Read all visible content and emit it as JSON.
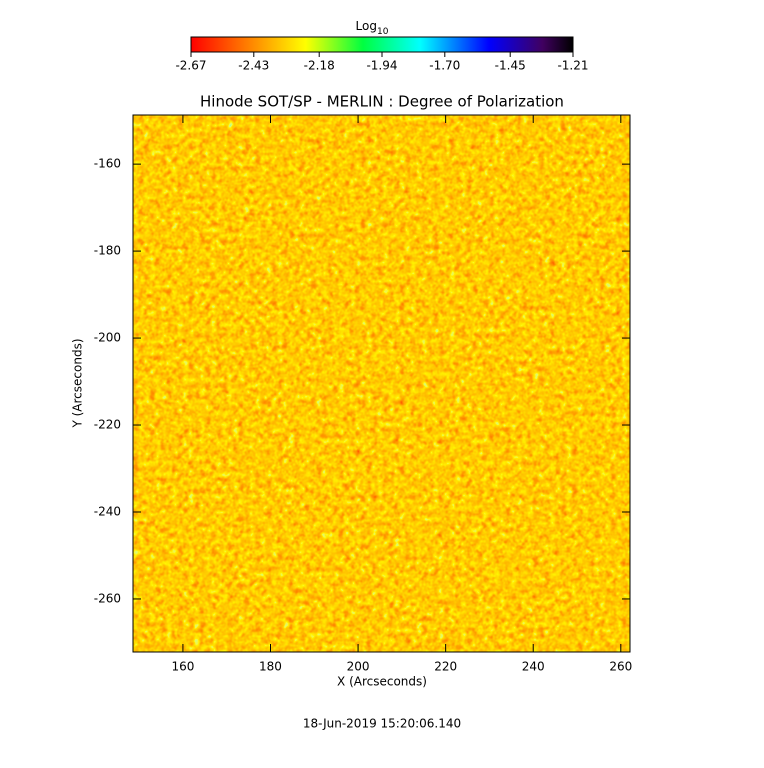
{
  "chart_data": {
    "type": "heatmap",
    "title": "Hinode SOT/SP - MERLIN : Degree of Polarization",
    "xlabel": "X (Arcseconds)",
    "ylabel": "Y (Arcseconds)",
    "xlim": [
      148.6,
      262.1
    ],
    "ylim": [
      -272.2,
      -148.7
    ],
    "xticks": [
      160,
      180,
      200,
      220,
      240,
      260
    ],
    "yticks": [
      -260,
      -240,
      -220,
      -200,
      -180,
      -160
    ],
    "colorbar": {
      "title": "Log",
      "title_sub": "10",
      "clim": [
        -2.67,
        -1.21
      ],
      "ticks": [
        -2.67,
        -2.43,
        -2.18,
        -1.94,
        {
          "value": -1.7,
          "label": "-1.70"
        },
        -1.45,
        -1.21
      ]
    },
    "date": "18-Jun-2019 15:20:06.140"
  }
}
